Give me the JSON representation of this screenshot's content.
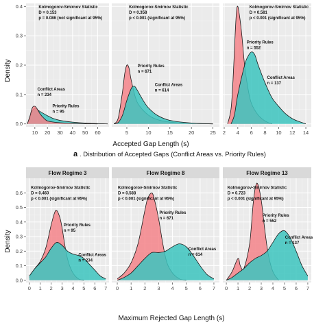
{
  "figure": {
    "top_ylabel": "Density",
    "top_xlabel": "Accepted Gap Length (s)",
    "caption_letter": "a",
    "caption_text": ". Distribution of Accepted Gaps (Conflict Areas vs. Priority Rules)",
    "bottom_ylabel": "Density",
    "bottom_xlabel": "Maximum Rejected Gap Length (s)"
  },
  "colors": {
    "priority_rules": "#f4848a",
    "conflict_areas": "#3cc4be",
    "panel_bg": "#ebebeb",
    "grid": "#ffffff",
    "strip_bg": "#d9d9d9"
  },
  "chart_data": [
    {
      "type": "area",
      "row": "top",
      "panel": 1,
      "strip": "",
      "xlim": [
        3,
        69
      ],
      "ylim": [
        -0.01,
        0.41
      ],
      "xticks": [
        10,
        20,
        30,
        40,
        50,
        60
      ],
      "yticks": [
        0.0,
        0.1,
        0.2,
        0.3,
        0.4
      ],
      "ytick_labels": [
        "0.0",
        "0.1",
        "0.2",
        "0.3",
        "0.4"
      ],
      "annotations": [
        {
          "lines": [
            "Kolmogorov-Smirnov Statistic",
            "D = 0.153",
            "p = 0.086 (not significant at 95%)"
          ],
          "x": 13,
          "y": 0.405
        },
        {
          "lines": [
            "Conflict Areas",
            "n = 234"
          ],
          "x": 12,
          "y": 0.125
        },
        {
          "lines": [
            "Priority Rules",
            "n = 95"
          ],
          "x": 24,
          "y": 0.068
        }
      ],
      "series": [
        {
          "name": "Conflict Areas",
          "x": [
            4,
            6,
            8,
            10,
            12,
            15,
            20,
            25,
            30,
            40,
            50,
            60,
            68
          ],
          "y": [
            0.0,
            0.02,
            0.045,
            0.052,
            0.048,
            0.04,
            0.028,
            0.018,
            0.012,
            0.006,
            0.003,
            0.001,
            0.0
          ]
        },
        {
          "name": "Priority Rules",
          "x": [
            4,
            6,
            8,
            10,
            12,
            14,
            17,
            20,
            25,
            30,
            40,
            50,
            60
          ],
          "y": [
            0.0,
            0.025,
            0.055,
            0.06,
            0.05,
            0.035,
            0.02,
            0.01,
            0.006,
            0.004,
            0.002,
            0.001,
            0.0
          ]
        }
      ]
    },
    {
      "type": "area",
      "row": "top",
      "panel": 2,
      "strip": "",
      "xlim": [
        1.5,
        26.5
      ],
      "ylim": [
        -0.01,
        0.41
      ],
      "xticks": [
        5,
        10,
        15,
        20,
        25
      ],
      "yticks": [
        0.0,
        0.1,
        0.2,
        0.3,
        0.4
      ],
      "ytick_labels": [],
      "annotations": [
        {
          "lines": [
            "Kolmogorov-Smirnov Statistic",
            "D = 0.358",
            "p < 0.001 (significant at 95%)"
          ],
          "x": 5.5,
          "y": 0.405
        },
        {
          "lines": [
            "Priority Rules",
            "n = 671"
          ],
          "x": 7.5,
          "y": 0.205
        },
        {
          "lines": [
            "Conflict Areas",
            "n = 614"
          ],
          "x": 11.5,
          "y": 0.14
        }
      ],
      "series": [
        {
          "name": "Priority Rules",
          "x": [
            2,
            3,
            4,
            4.5,
            5,
            5.5,
            6,
            7,
            8,
            10,
            12,
            15,
            20,
            25
          ],
          "y": [
            0.0,
            0.02,
            0.11,
            0.17,
            0.2,
            0.19,
            0.15,
            0.09,
            0.06,
            0.03,
            0.015,
            0.006,
            0.002,
            0.0
          ]
        },
        {
          "name": "Conflict Areas",
          "x": [
            2,
            3,
            4,
            5,
            6,
            6.5,
            7,
            8,
            9,
            10,
            12,
            15,
            20,
            25
          ],
          "y": [
            0.0,
            0.005,
            0.03,
            0.08,
            0.12,
            0.128,
            0.125,
            0.1,
            0.075,
            0.055,
            0.03,
            0.012,
            0.003,
            0.0
          ]
        }
      ]
    },
    {
      "type": "area",
      "row": "top",
      "panel": 3,
      "strip": "",
      "xlim": [
        1.8,
        14.8
      ],
      "ylim": [
        -0.01,
        0.41
      ],
      "xticks": [
        2,
        4,
        6,
        8,
        10,
        12,
        14
      ],
      "yticks": [
        0.0,
        0.1,
        0.2,
        0.3,
        0.4
      ],
      "ytick_labels": [],
      "annotations": [
        {
          "lines": [
            "Kolmogorov-Smirnov Statistic",
            "D = 0.581",
            "p < 0.001 (significant at 95%)"
          ],
          "x": 5.7,
          "y": 0.405
        },
        {
          "lines": [
            "Priority Rules",
            "n = 552"
          ],
          "x": 5.3,
          "y": 0.285
        },
        {
          "lines": [
            "Conflict Areas",
            "n = 137"
          ],
          "x": 8.3,
          "y": 0.165
        }
      ],
      "series": [
        {
          "name": "Priority Rules",
          "x": [
            2.5,
            3,
            3.3,
            3.6,
            3.8,
            4,
            4.3,
            4.6,
            5,
            5.5,
            6,
            7,
            8,
            9
          ],
          "y": [
            0.0,
            0.05,
            0.15,
            0.3,
            0.38,
            0.4,
            0.36,
            0.3,
            0.2,
            0.12,
            0.07,
            0.03,
            0.01,
            0.0
          ]
        },
        {
          "name": "Conflict Areas",
          "x": [
            3,
            3.5,
            4,
            5,
            5.5,
            6,
            6.5,
            7,
            8,
            9,
            10,
            11,
            12,
            13,
            14
          ],
          "y": [
            0.0,
            0.03,
            0.1,
            0.2,
            0.23,
            0.245,
            0.235,
            0.2,
            0.14,
            0.09,
            0.06,
            0.035,
            0.018,
            0.008,
            0.0
          ]
        }
      ]
    },
    {
      "type": "area",
      "row": "bottom",
      "panel": 1,
      "strip": "Flow Regime 3",
      "xlim": [
        -0.3,
        7.3
      ],
      "ylim": [
        -0.015,
        0.7
      ],
      "xticks": [
        0,
        1,
        2,
        3,
        4,
        5,
        6,
        7
      ],
      "yticks": [
        0.0,
        0.1,
        0.2,
        0.3,
        0.4,
        0.5,
        0.6
      ],
      "ytick_labels": [
        "0.0",
        "0.1",
        "0.2",
        "0.3",
        "0.4",
        "0.5",
        "0.6"
      ],
      "annotations": [
        {
          "lines": [
            "Kolmogorov-Smirnov Statistic",
            "D = 0.460",
            "p < 0.001 (significant at 95%)"
          ],
          "x": 0.15,
          "y": 0.65
        },
        {
          "lines": [
            "Priority Rules",
            "n = 95"
          ],
          "x": 3.15,
          "y": 0.395
        },
        {
          "lines": [
            "Conflict Areas",
            "n = 234"
          ],
          "x": 4.5,
          "y": 0.19
        }
      ],
      "series": [
        {
          "name": "Priority Rules",
          "x": [
            0,
            0.5,
            1,
            1.5,
            2,
            2.3,
            2.5,
            2.8,
            3,
            3.3,
            3.6,
            4,
            4.5,
            5
          ],
          "y": [
            0.02,
            0.08,
            0.13,
            0.22,
            0.38,
            0.46,
            0.48,
            0.43,
            0.36,
            0.22,
            0.12,
            0.05,
            0.01,
            0.0
          ]
        },
        {
          "name": "Conflict Areas",
          "x": [
            0,
            0.5,
            1,
            1.5,
            2,
            2.5,
            3,
            3.5,
            4,
            4.5,
            5,
            5.5,
            6,
            6.5,
            7
          ],
          "y": [
            0.03,
            0.08,
            0.12,
            0.16,
            0.22,
            0.26,
            0.24,
            0.2,
            0.18,
            0.17,
            0.15,
            0.11,
            0.07,
            0.03,
            0.01
          ]
        }
      ]
    },
    {
      "type": "area",
      "row": "bottom",
      "panel": 2,
      "strip": "Flow Regime 8",
      "xlim": [
        -0.4,
        7.4
      ],
      "ylim": [
        -0.015,
        0.7
      ],
      "xticks": [
        0,
        1,
        2,
        3,
        4,
        5,
        6,
        7
      ],
      "yticks": [
        0.0,
        0.1,
        0.2,
        0.3,
        0.4,
        0.5,
        0.6
      ],
      "ytick_labels": [],
      "annotations": [
        {
          "lines": [
            "Kolmogorov-Smirnov Statistic",
            "D = 0.588",
            "p < 0.001 (significant at 95%)"
          ],
          "x": 0.05,
          "y": 0.65
        },
        {
          "lines": [
            "Priority Rules",
            "n = 671"
          ],
          "x": 3.05,
          "y": 0.48
        },
        {
          "lines": [
            "Conflict Areas",
            "n = 614"
          ],
          "x": 5.15,
          "y": 0.23
        }
      ],
      "series": [
        {
          "name": "Priority Rules",
          "x": [
            0,
            0.5,
            1,
            1.5,
            2,
            2.2,
            2.5,
            2.7,
            3,
            3.3,
            3.6,
            4,
            4.5,
            5
          ],
          "y": [
            0.01,
            0.05,
            0.12,
            0.25,
            0.48,
            0.56,
            0.6,
            0.55,
            0.42,
            0.25,
            0.12,
            0.05,
            0.01,
            0.0
          ]
        },
        {
          "name": "Conflict Areas",
          "x": [
            0,
            0.5,
            1,
            1.5,
            2,
            2.5,
            3,
            3.5,
            4,
            4.5,
            5,
            5.5,
            6,
            6.5,
            7
          ],
          "y": [
            0.0,
            0.02,
            0.05,
            0.1,
            0.15,
            0.19,
            0.19,
            0.2,
            0.23,
            0.25,
            0.23,
            0.17,
            0.1,
            0.04,
            0.01
          ]
        }
      ]
    },
    {
      "type": "area",
      "row": "bottom",
      "panel": 3,
      "strip": "Flow Regime 13",
      "xlim": [
        -0.3,
        7.3
      ],
      "ylim": [
        -0.015,
        0.7
      ],
      "xticks": [
        0,
        1,
        2,
        3,
        4,
        5,
        6,
        7
      ],
      "yticks": [
        0.0,
        0.1,
        0.2,
        0.3,
        0.4,
        0.5,
        0.6
      ],
      "ytick_labels": [],
      "annotations": [
        {
          "lines": [
            "Kolmogorov-Smirnov Statistic",
            "D = 0.723",
            "p < 0.001 (significant at 95%)"
          ],
          "x": 0.1,
          "y": 0.65
        },
        {
          "lines": [
            "Priority Rules",
            "n = 552"
          ],
          "x": 3.1,
          "y": 0.46
        },
        {
          "lines": [
            "Conflict Areas",
            "n = 137"
          ],
          "x": 5.05,
          "y": 0.31
        }
      ],
      "series": [
        {
          "name": "Priority Rules",
          "x": [
            0,
            0.5,
            1,
            1.2,
            1.5,
            2,
            2.3,
            2.5,
            2.7,
            3,
            3.3,
            3.6,
            4,
            4.5
          ],
          "y": [
            0.0,
            0.06,
            0.15,
            0.1,
            0.08,
            0.25,
            0.52,
            0.64,
            0.66,
            0.55,
            0.35,
            0.18,
            0.06,
            0.0
          ]
        },
        {
          "name": "Conflict Areas",
          "x": [
            0,
            0.5,
            1,
            1.5,
            2,
            2.5,
            3,
            3.5,
            4,
            4.5,
            5,
            5.5,
            6,
            6.5,
            7
          ],
          "y": [
            0.0,
            0.02,
            0.05,
            0.08,
            0.12,
            0.15,
            0.17,
            0.2,
            0.26,
            0.32,
            0.34,
            0.29,
            0.2,
            0.1,
            0.03
          ]
        }
      ]
    }
  ]
}
